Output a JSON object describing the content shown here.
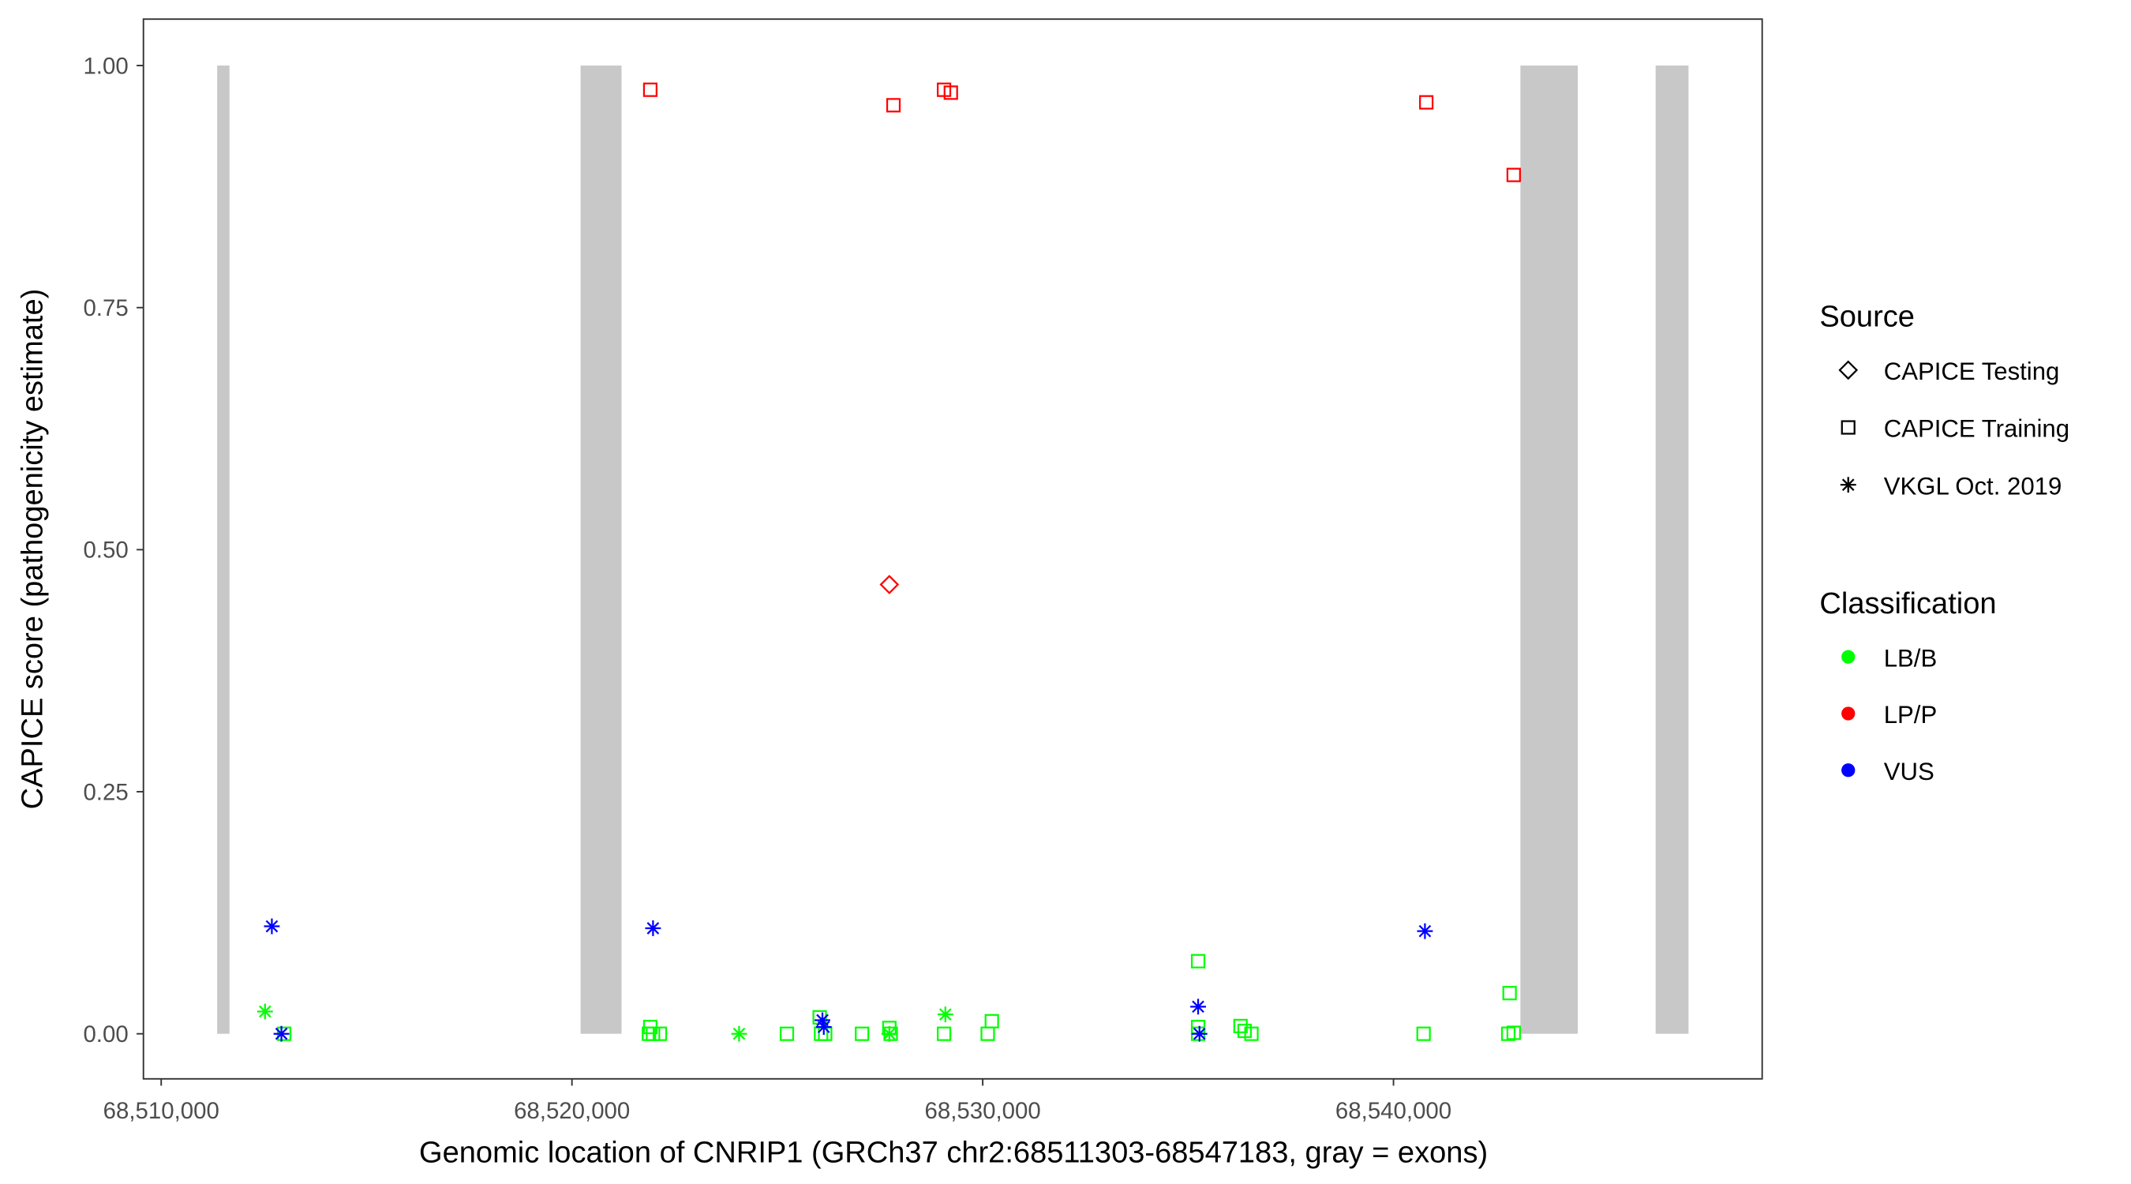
{
  "chart_data": {
    "type": "scatter",
    "xlabel": "Genomic location of CNRIP1 (GRCh37 chr2:68511303-68547183, gray = exons)",
    "ylabel": "CAPICE score (pathogenicity estimate)",
    "xlim": [
      68509600,
      68549000
    ],
    "ylim": [
      -0.045,
      1.05
    ],
    "x_ticks": [
      68510000,
      68520000,
      68530000,
      68540000
    ],
    "x_tick_labels": [
      "68,510,000",
      "68,520,000",
      "68,530,000",
      "68,540,000"
    ],
    "y_ticks": [
      0,
      0.25,
      0.5,
      0.75,
      1.0
    ],
    "y_tick_labels": [
      "0.00",
      "0.25",
      "0.50",
      "0.75",
      "1.00"
    ],
    "grid": false,
    "exon_color": "#C8C8C8",
    "exons": [
      {
        "start": 68511363,
        "end": 68511663
      },
      {
        "start": 68520210,
        "end": 68521207
      },
      {
        "start": 68543090,
        "end": 68544487
      },
      {
        "start": 68546382,
        "end": 68547183
      }
    ],
    "legend_placement": "right",
    "legend": {
      "source_title": "Source",
      "sources": [
        {
          "label": "CAPICE Testing",
          "shape": "diamond"
        },
        {
          "label": "CAPICE Training",
          "shape": "square"
        },
        {
          "label": "VKGL Oct. 2019",
          "shape": "asterisk"
        }
      ],
      "class_title": "Classification",
      "classes": [
        {
          "label": "LB/B",
          "color": "#00FF00"
        },
        {
          "label": "LP/P",
          "color": "#FF0000"
        },
        {
          "label": "VUS",
          "color": "#0000FF"
        }
      ]
    },
    "points": [
      {
        "x": 68521907,
        "y": 0.975,
        "source": "CAPICE Training",
        "class": "LP/P"
      },
      {
        "x": 68527827,
        "y": 0.959,
        "source": "CAPICE Training",
        "class": "LP/P"
      },
      {
        "x": 68529058,
        "y": 0.975,
        "source": "CAPICE Training",
        "class": "LP/P"
      },
      {
        "x": 68529224,
        "y": 0.972,
        "source": "CAPICE Training",
        "class": "LP/P"
      },
      {
        "x": 68540799,
        "y": 0.962,
        "source": "CAPICE Training",
        "class": "LP/P"
      },
      {
        "x": 68542927,
        "y": 0.887,
        "source": "CAPICE Training",
        "class": "LP/P"
      },
      {
        "x": 68527727,
        "y": 0.464,
        "source": "CAPICE Testing",
        "class": "LP/P"
      },
      {
        "x": 68512528,
        "y": 0.023,
        "source": "VKGL Oct. 2019",
        "class": "LB/B"
      },
      {
        "x": 68524069,
        "y": 0.0,
        "source": "VKGL Oct. 2019",
        "class": "LB/B"
      },
      {
        "x": 68527727,
        "y": 0.0,
        "source": "VKGL Oct. 2019",
        "class": "LB/B"
      },
      {
        "x": 68529091,
        "y": 0.02,
        "source": "VKGL Oct. 2019",
        "class": "LB/B"
      },
      {
        "x": 68512993,
        "y": 0.0,
        "source": "CAPICE Training",
        "class": "LB/B"
      },
      {
        "x": 68521907,
        "y": 0.007,
        "source": "CAPICE Training",
        "class": "LB/B"
      },
      {
        "x": 68521874,
        "y": 0.0,
        "source": "CAPICE Training",
        "class": "LB/B"
      },
      {
        "x": 68521974,
        "y": 0.0,
        "source": "CAPICE Training",
        "class": "LB/B"
      },
      {
        "x": 68522140,
        "y": 0.0,
        "source": "CAPICE Training",
        "class": "LB/B"
      },
      {
        "x": 68525233,
        "y": 0.0,
        "source": "CAPICE Training",
        "class": "LB/B"
      },
      {
        "x": 68526031,
        "y": 0.017,
        "source": "CAPICE Training",
        "class": "LB/B"
      },
      {
        "x": 68526064,
        "y": 0.0,
        "source": "CAPICE Training",
        "class": "LB/B"
      },
      {
        "x": 68526164,
        "y": 0.0,
        "source": "CAPICE Training",
        "class": "LB/B"
      },
      {
        "x": 68527062,
        "y": 0.0,
        "source": "CAPICE Training",
        "class": "LB/B"
      },
      {
        "x": 68527727,
        "y": 0.006,
        "source": "CAPICE Training",
        "class": "LB/B"
      },
      {
        "x": 68527760,
        "y": 0.0,
        "source": "CAPICE Training",
        "class": "LB/B"
      },
      {
        "x": 68529058,
        "y": 0.0,
        "source": "CAPICE Training",
        "class": "LB/B"
      },
      {
        "x": 68530122,
        "y": 0.0,
        "source": "CAPICE Training",
        "class": "LB/B"
      },
      {
        "x": 68530222,
        "y": 0.013,
        "source": "CAPICE Training",
        "class": "LB/B"
      },
      {
        "x": 68535244,
        "y": 0.075,
        "source": "CAPICE Training",
        "class": "LB/B"
      },
      {
        "x": 68535244,
        "y": 0.007,
        "source": "CAPICE Training",
        "class": "LB/B"
      },
      {
        "x": 68535244,
        "y": 0.0,
        "source": "CAPICE Training",
        "class": "LB/B"
      },
      {
        "x": 68536276,
        "y": 0.008,
        "source": "CAPICE Training",
        "class": "LB/B"
      },
      {
        "x": 68536376,
        "y": 0.003,
        "source": "CAPICE Training",
        "class": "LB/B"
      },
      {
        "x": 68536542,
        "y": 0.0,
        "source": "CAPICE Training",
        "class": "LB/B"
      },
      {
        "x": 68540733,
        "y": 0.0,
        "source": "CAPICE Training",
        "class": "LB/B"
      },
      {
        "x": 68542827,
        "y": 0.042,
        "source": "CAPICE Training",
        "class": "LB/B"
      },
      {
        "x": 68542794,
        "y": 0.0,
        "source": "CAPICE Training",
        "class": "LB/B"
      },
      {
        "x": 68542927,
        "y": 0.001,
        "source": "CAPICE Training",
        "class": "LB/B"
      },
      {
        "x": 68512694,
        "y": 0.111,
        "source": "VKGL Oct. 2019",
        "class": "VUS"
      },
      {
        "x": 68512927,
        "y": 0.0,
        "source": "VKGL Oct. 2019",
        "class": "VUS"
      },
      {
        "x": 68521974,
        "y": 0.109,
        "source": "VKGL Oct. 2019",
        "class": "VUS"
      },
      {
        "x": 68526098,
        "y": 0.014,
        "source": "VKGL Oct. 2019",
        "class": "VUS"
      },
      {
        "x": 68526131,
        "y": 0.007,
        "source": "VKGL Oct. 2019",
        "class": "VUS"
      },
      {
        "x": 68535244,
        "y": 0.028,
        "source": "VKGL Oct. 2019",
        "class": "VUS"
      },
      {
        "x": 68535277,
        "y": 0.0,
        "source": "VKGL Oct. 2019",
        "class": "VUS"
      },
      {
        "x": 68540766,
        "y": 0.106,
        "source": "VKGL Oct. 2019",
        "class": "VUS"
      }
    ]
  }
}
